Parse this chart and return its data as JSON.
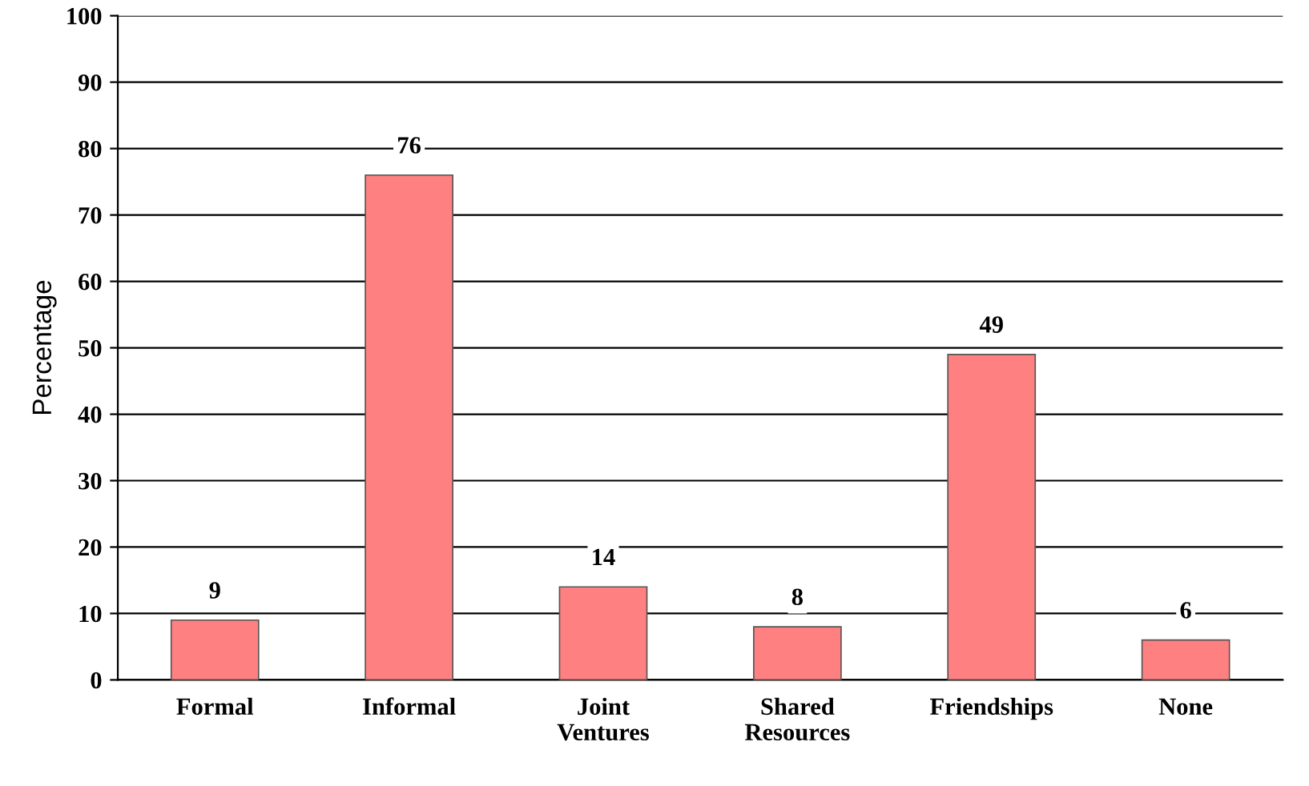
{
  "chart_data": {
    "type": "bar",
    "ylabel": "Percentage",
    "categories": [
      "Formal",
      "Informal",
      "Joint\nVentures",
      "Shared\nResources",
      "Friendships",
      "None"
    ],
    "values": [
      9,
      76,
      14,
      8,
      49,
      6
    ],
    "color": "#ff8080",
    "ylim": [
      0,
      100
    ],
    "yticks": [
      0,
      10,
      20,
      30,
      40,
      50,
      60,
      70,
      80,
      90,
      100
    ],
    "grid": "y",
    "data_labels": true
  }
}
